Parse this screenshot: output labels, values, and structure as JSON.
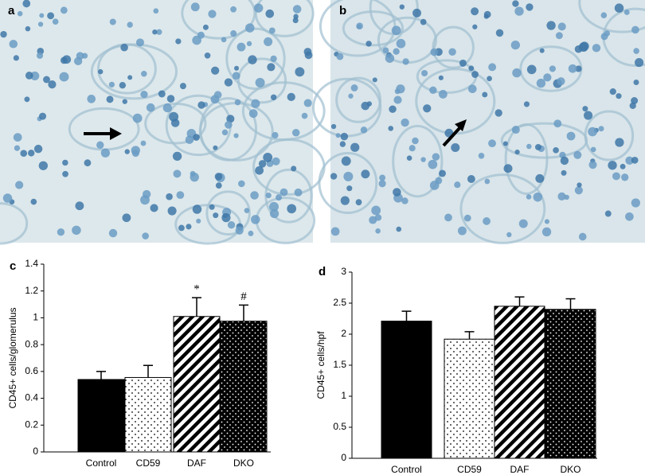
{
  "images": [
    {
      "label": "a"
    },
    {
      "label": "b"
    }
  ],
  "chart_data": [
    {
      "type": "bar",
      "panel": "c",
      "y_label": "CD45+ cells/glomerulus",
      "categories": [
        "Control",
        "CD59",
        "DAF",
        "DKO"
      ],
      "values": [
        0.54,
        0.555,
        1.01,
        0.975
      ],
      "errors": [
        0.06,
        0.09,
        0.14,
        0.12
      ],
      "bar_labels": [
        null,
        null,
        "*",
        "#"
      ],
      "patterns": [
        "solid",
        "dots",
        "stripes",
        "dark-dots"
      ],
      "ylim": [
        0,
        1.4
      ],
      "yticks": [
        0,
        0.2,
        0.4,
        0.6,
        0.8,
        1,
        1.2,
        1.4
      ]
    },
    {
      "type": "bar",
      "panel": "d",
      "y_label": "CD45+ cells/hpf",
      "categories": [
        "Control",
        "CD59",
        "DAF",
        "DKO"
      ],
      "values": [
        2.21,
        1.92,
        2.45,
        2.4
      ],
      "errors": [
        0.16,
        0.12,
        0.15,
        0.17
      ],
      "patterns": [
        "solid",
        "dots",
        "stripes",
        "dark-dots"
      ],
      "ylim": [
        0,
        3
      ],
      "yticks": [
        0,
        0.5,
        1,
        1.5,
        2,
        2.5,
        3
      ]
    }
  ]
}
